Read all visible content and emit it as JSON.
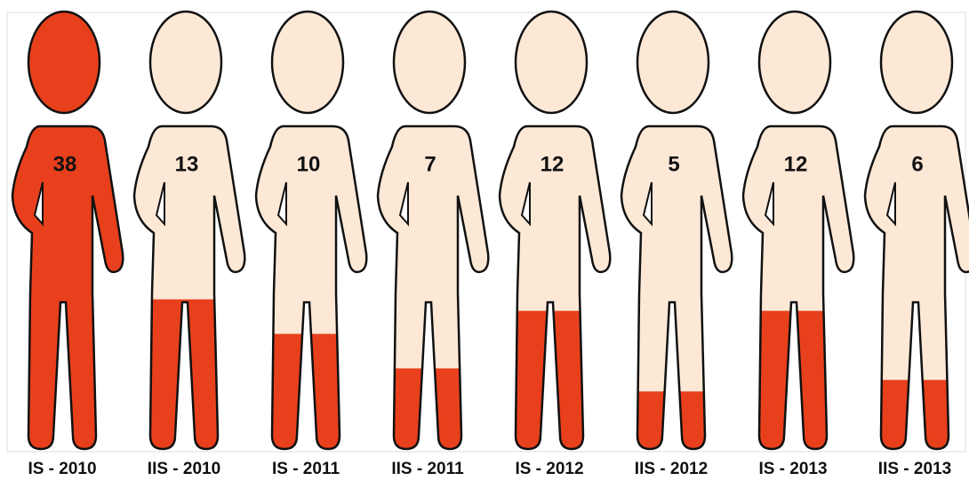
{
  "chart_data": {
    "type": "pictograph",
    "categories": [
      "IS - 2010",
      "IIS - 2010",
      "IS - 2011",
      "IIS - 2011",
      "IS - 2012",
      "IIS - 2012",
      "IS - 2013",
      "IIS - 2013"
    ],
    "values": [
      38,
      13,
      10,
      7,
      12,
      5,
      12,
      6
    ],
    "color": "#e8401c",
    "empty_color": "#fde8d6"
  }
}
